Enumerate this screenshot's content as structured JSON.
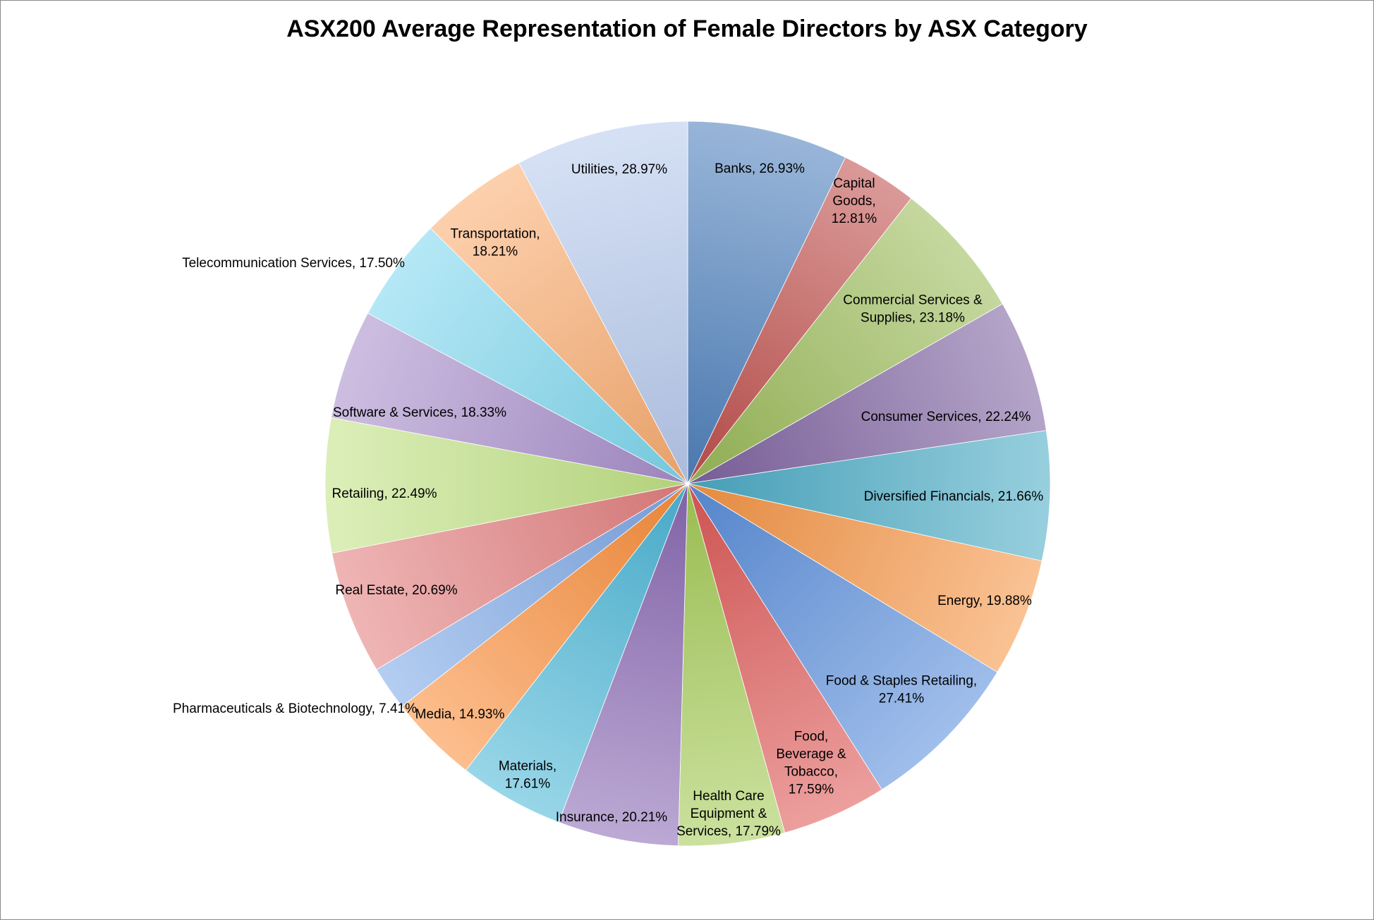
{
  "chart_data": {
    "type": "pie",
    "title": "ASX200 Average Representation of Female Directors by ASX Category",
    "slices": [
      {
        "label": "Banks",
        "value": 26.93,
        "display": "26.93%",
        "color": "#4f81bd"
      },
      {
        "label": "Capital Goods",
        "value": 12.81,
        "display": "12.81%",
        "color": "#c0504d"
      },
      {
        "label": "Commercial Services & Supplies",
        "value": 23.18,
        "display": "23.18%",
        "color": "#9bbb59"
      },
      {
        "label": "Consumer Services",
        "value": 22.24,
        "display": "22.24%",
        "color": "#8064a2"
      },
      {
        "label": "Diversified Financials",
        "value": 21.66,
        "display": "21.66%",
        "color": "#4bacc6"
      },
      {
        "label": "Energy",
        "value": 19.88,
        "display": "19.88%",
        "color": "#f79646"
      },
      {
        "label": "Food & Staples Retailing",
        "value": 27.41,
        "display": "27.41%",
        "color": "#5b8fdc"
      },
      {
        "label": "Food, Beverage & Tobacco",
        "value": 17.59,
        "display": "17.59%",
        "color": "#de5a58"
      },
      {
        "label": "Health Care Equipment & Services",
        "value": 17.79,
        "display": "17.79%",
        "color": "#a6cc58"
      },
      {
        "label": "Insurance",
        "value": 20.21,
        "display": "20.21%",
        "color": "#8b6bb4"
      },
      {
        "label": "Materials",
        "value": 17.61,
        "display": "17.61%",
        "color": "#4db8d8"
      },
      {
        "label": "Media",
        "value": 14.93,
        "display": "14.93%",
        "color": "#fb8f3c"
      },
      {
        "label": "Pharmaceuticals & Biotechnology",
        "value": 7.41,
        "display": "7.41%",
        "color": "#7ea8e6"
      },
      {
        "label": "Real Estate",
        "value": 20.69,
        "display": "20.69%",
        "color": "#e48080"
      },
      {
        "label": "Retailing",
        "value": 22.49,
        "display": "22.49%",
        "color": "#c2e386"
      },
      {
        "label": "Software & Services",
        "value": 18.33,
        "display": "18.33%",
        "color": "#a88fcc"
      },
      {
        "label": "Telecommunication Services",
        "value": 17.5,
        "display": "17.50%",
        "color": "#7fd8ef"
      },
      {
        "label": "Transportation",
        "value": 18.21,
        "display": "18.21%",
        "color": "#fbae72"
      },
      {
        "label": "Utilities",
        "value": 28.97,
        "display": "28.97%",
        "color": "#b9cbee"
      }
    ],
    "start_angle_deg": 0,
    "direction": "clockwise",
    "legend": "none",
    "data_labels": "category name and value"
  }
}
